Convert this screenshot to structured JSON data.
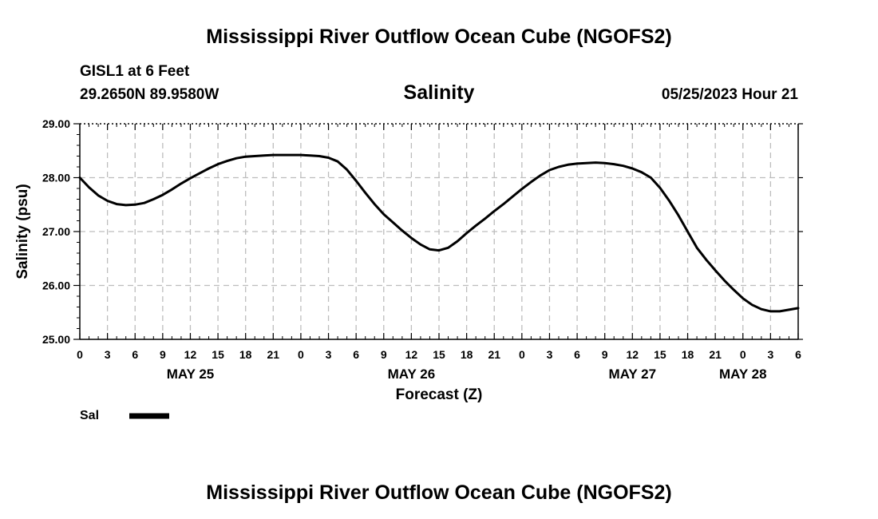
{
  "header": {
    "title": "Mississippi River Outflow Ocean Cube (NGOFS2)",
    "station": "GISL1 at 6 Feet",
    "coords": "29.2650N  89.9580W",
    "timestamp": "05/25/2023 Hour 21"
  },
  "footer": {
    "title": "Mississippi River Outflow Ocean Cube (NGOFS2)"
  },
  "chart_data": {
    "type": "line",
    "title": "Salinity",
    "xlabel": "Forecast (Z)",
    "ylabel": "Salinity (psu)",
    "ylim": [
      25.0,
      29.0
    ],
    "yticks": [
      "25.00",
      "26.00",
      "27.00",
      "28.00",
      "29.00"
    ],
    "xlim_hours": [
      0,
      78
    ],
    "xticks": [
      "0",
      "3",
      "6",
      "9",
      "12",
      "15",
      "18",
      "21",
      "0",
      "3",
      "6",
      "9",
      "12",
      "15",
      "18",
      "21",
      "0",
      "3",
      "6",
      "9",
      "12",
      "15",
      "18",
      "21",
      "0",
      "3",
      "6"
    ],
    "date_labels": [
      {
        "label": "MAY 25",
        "hour": 12
      },
      {
        "label": "MAY 26",
        "hour": 36
      },
      {
        "label": "MAY 27",
        "hour": 60
      },
      {
        "label": "MAY 28",
        "hour": 72
      }
    ],
    "grid": true,
    "legend": "bottom-left",
    "series": [
      {
        "name": "Sal",
        "color": "#000000",
        "x_hours": [
          0,
          1,
          2,
          3,
          4,
          5,
          6,
          7,
          8,
          9,
          10,
          11,
          12,
          13,
          14,
          15,
          16,
          17,
          18,
          19,
          20,
          21,
          22,
          23,
          24,
          25,
          26,
          27,
          28,
          29,
          30,
          31,
          32,
          33,
          34,
          35,
          36,
          37,
          38,
          39,
          40,
          41,
          42,
          43,
          44,
          45,
          46,
          47,
          48,
          49,
          50,
          51,
          52,
          53,
          54,
          55,
          56,
          57,
          58,
          59,
          60,
          61,
          62,
          63,
          64,
          65,
          66,
          67,
          68,
          69,
          70,
          71,
          72,
          73,
          74,
          75,
          76,
          77,
          78
        ],
        "values": [
          28.0,
          27.82,
          27.67,
          27.57,
          27.51,
          27.49,
          27.5,
          27.53,
          27.6,
          27.68,
          27.78,
          27.89,
          27.99,
          28.08,
          28.17,
          28.25,
          28.31,
          28.36,
          28.39,
          28.4,
          28.41,
          28.42,
          28.42,
          28.42,
          28.42,
          28.41,
          28.4,
          28.37,
          28.3,
          28.15,
          27.94,
          27.72,
          27.51,
          27.32,
          27.17,
          27.02,
          26.88,
          26.76,
          26.67,
          26.65,
          26.7,
          26.82,
          26.97,
          27.11,
          27.24,
          27.38,
          27.51,
          27.65,
          27.79,
          27.92,
          28.04,
          28.14,
          28.2,
          28.24,
          28.26,
          28.27,
          28.28,
          28.27,
          28.25,
          28.22,
          28.17,
          28.1,
          28.0,
          27.81,
          27.57,
          27.3,
          27.0,
          26.7,
          26.48,
          26.28,
          26.09,
          25.92,
          25.76,
          25.64,
          25.56,
          25.52,
          25.52,
          25.55,
          25.58
        ]
      }
    ]
  }
}
